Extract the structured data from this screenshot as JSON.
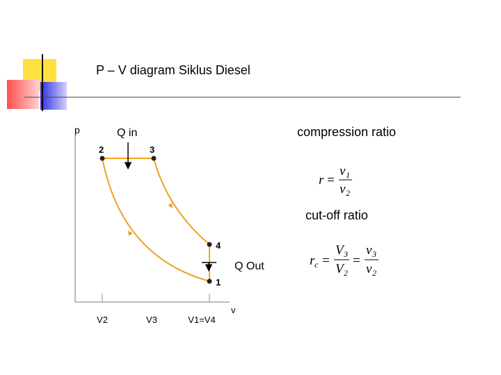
{
  "title": "P – V diagram Siklus Diesel",
  "diagram": {
    "axes": {
      "y_label": "p",
      "x_label": "v"
    },
    "points": [
      {
        "label": "1"
      },
      {
        "label": "2"
      },
      {
        "label": "3"
      },
      {
        "label": "4"
      }
    ],
    "volumes": [
      {
        "label": "V2"
      },
      {
        "label": "V3"
      },
      {
        "label": "V1=V4"
      }
    ],
    "heat_in": "Q in",
    "heat_out": "Q Out"
  },
  "formulas": {
    "compression": {
      "caption": "compression ratio",
      "symbol": "r",
      "equals": "=",
      "numerator": "v",
      "numerator_sub": "1",
      "denominator": "v",
      "denominator_sub": "2"
    },
    "cutoff": {
      "caption": "cut-off ratio",
      "symbol": "r",
      "symbol_sub": "c",
      "equals": "=",
      "numerator": "V",
      "numerator_sub": "3",
      "denominator": "V",
      "denominator_sub": "2",
      "numerator2": "v",
      "numerator2_sub": "3",
      "denominator2": "v",
      "denominator2_sub": "2"
    }
  }
}
